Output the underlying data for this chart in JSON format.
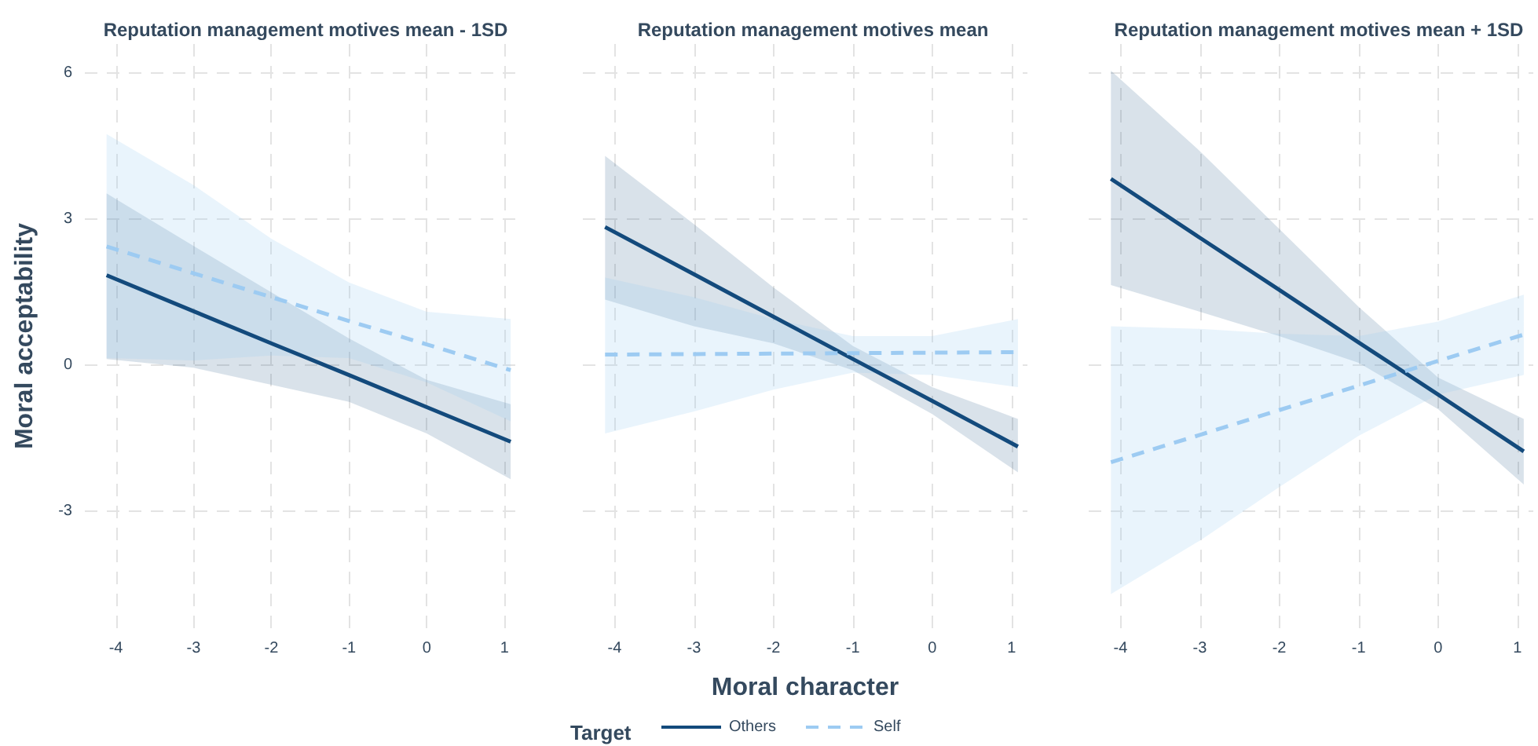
{
  "chart_data": [
    {
      "type": "line",
      "title": "Reputation management motives mean - 1SD",
      "ylabel": "Moral acceptability",
      "xlim": [
        -4.4,
        1.2
      ],
      "xticks": [
        -4,
        -3,
        -2,
        -1,
        0,
        1
      ],
      "ylim": [
        -5.4,
        6.6
      ],
      "yticks": [
        -3,
        0,
        3,
        6
      ],
      "grid": true,
      "legend": false,
      "marker": "none",
      "series": [
        {
          "color": "#134a7c",
          "line_style": "solid",
          "x": [
            -4.12,
            -3,
            -2,
            -1,
            0,
            1.08
          ],
          "values": [
            1.85,
            1.11,
            0.45,
            -0.2,
            -0.86,
            -1.57
          ],
          "lower": [
            0.13,
            -0.05,
            -0.4,
            -0.75,
            -1.4,
            -2.34
          ],
          "upper": [
            3.53,
            2.45,
            1.5,
            0.55,
            -0.3,
            -0.8
          ]
        },
        {
          "color": "#9dcbf2",
          "line_style": "dashed",
          "x": [
            -4.12,
            -3,
            -2,
            -1,
            0,
            1.08
          ],
          "values": [
            2.44,
            1.89,
            1.4,
            0.91,
            0.43,
            -0.1
          ],
          "lower": [
            0.15,
            0.1,
            0.2,
            0.15,
            -0.35,
            -1.15
          ],
          "upper": [
            4.75,
            3.7,
            2.6,
            1.7,
            1.1,
            0.95
          ]
        }
      ]
    },
    {
      "type": "line",
      "title": "Reputation management motives mean",
      "xlabel": "Moral character",
      "legend_title": "Target",
      "xlim": [
        -4.4,
        1.2
      ],
      "xticks": [
        -4,
        -3,
        -2,
        -1,
        0,
        1
      ],
      "ylim": [
        -5.4,
        6.6
      ],
      "yticks": [
        -3,
        0,
        3,
        6
      ],
      "tick_labels": "x",
      "grid": true,
      "legend": "bottom",
      "marker": "none",
      "series": [
        {
          "name": "Others",
          "color": "#134a7c",
          "line_style": "solid",
          "x": [
            -4.12,
            -3,
            -2,
            -1,
            0,
            1.08
          ],
          "values": [
            2.84,
            1.87,
            1.0,
            0.13,
            -0.73,
            -1.67
          ],
          "lower": [
            1.35,
            0.8,
            0.45,
            -0.1,
            -1.0,
            -2.2
          ],
          "upper": [
            4.3,
            2.9,
            1.6,
            0.4,
            -0.45,
            -1.1
          ]
        },
        {
          "name": "Self",
          "color": "#9dcbf2",
          "line_style": "dashed",
          "x": [
            -4.12,
            -3,
            -2,
            -1,
            0,
            1.08
          ],
          "values": [
            0.22,
            0.23,
            0.24,
            0.25,
            0.26,
            0.27
          ],
          "lower": [
            -1.4,
            -0.95,
            -0.5,
            -0.15,
            -0.2,
            -0.45
          ],
          "upper": [
            1.8,
            1.4,
            0.95,
            0.6,
            0.6,
            0.95
          ]
        }
      ]
    },
    {
      "type": "line",
      "title": "Reputation management motives mean + 1SD",
      "xlim": [
        -4.4,
        1.2
      ],
      "xticks": [
        -4,
        -3,
        -2,
        -1,
        0,
        1
      ],
      "ylim": [
        -5.4,
        6.6
      ],
      "yticks": [
        -3,
        0,
        3,
        6
      ],
      "tick_labels": "x",
      "grid": true,
      "legend": false,
      "marker": "none",
      "series": [
        {
          "color": "#134a7c",
          "line_style": "solid",
          "x": [
            -4.12,
            -3,
            -2,
            -1,
            0,
            1.08
          ],
          "values": [
            3.83,
            2.62,
            1.55,
            0.47,
            -0.6,
            -1.77
          ],
          "lower": [
            1.65,
            1.1,
            0.6,
            0.05,
            -0.9,
            -2.45
          ],
          "upper": [
            6.05,
            4.4,
            2.8,
            1.2,
            -0.25,
            -1.1
          ]
        },
        {
          "color": "#9dcbf2",
          "line_style": "dashed",
          "x": [
            -4.12,
            -3,
            -2,
            -1,
            0,
            1.08
          ],
          "values": [
            -1.99,
            -1.43,
            -0.92,
            -0.42,
            0.09,
            0.63
          ],
          "lower": [
            -4.7,
            -3.6,
            -2.5,
            -1.45,
            -0.6,
            -0.2
          ],
          "upper": [
            0.8,
            0.75,
            0.65,
            0.6,
            0.9,
            1.45
          ]
        }
      ]
    }
  ]
}
